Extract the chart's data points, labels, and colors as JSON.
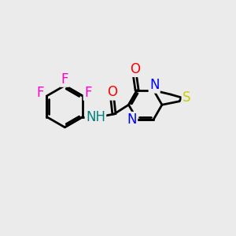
{
  "bg_color": "#ebebeb",
  "bond_color": "#000000",
  "atom_colors": {
    "F": "#ff00cc",
    "O": "#ff0000",
    "N": "#0000ff",
    "S": "#cccc00",
    "NH": "#008080"
  },
  "line_width": 2.0,
  "font_size": 13,
  "figsize": [
    3.0,
    3.0
  ],
  "dpi": 100
}
